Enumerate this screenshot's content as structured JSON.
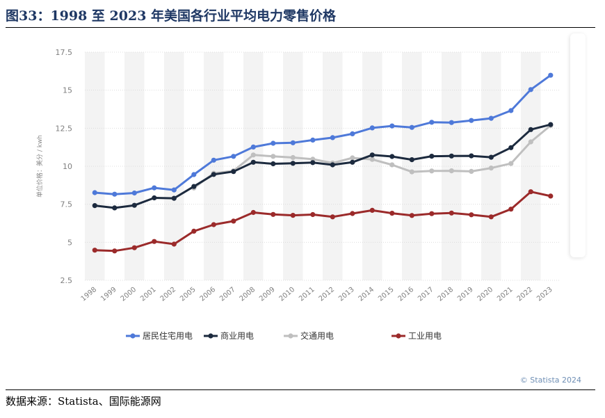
{
  "figure": {
    "title": "图33：1998 至 2023 年美国各行业平均电力零售价格",
    "source": "数据来源：Statista、国际能源网",
    "credit": "© Statista 2024"
  },
  "chart_data": {
    "type": "line",
    "ylabel": "单位价格：美分 / kwh",
    "ylim": [
      2.5,
      17.5
    ],
    "yticks": [
      "17.5",
      "15",
      "12.5",
      "10",
      "7.5",
      "5",
      "2.5"
    ],
    "categories": [
      "1998",
      "1999",
      "2000",
      "2001",
      "2002",
      "2005",
      "2006",
      "2007",
      "2008",
      "2009",
      "2010",
      "2011",
      "2012",
      "2013",
      "2014",
      "2015",
      "2016",
      "2017",
      "2018",
      "2019",
      "2020",
      "2021",
      "2022",
      "2023"
    ],
    "series": [
      {
        "name": "居民住宅用电",
        "color": "#4e79d9",
        "values": [
          8.26,
          8.16,
          8.24,
          8.58,
          8.44,
          9.45,
          10.4,
          10.65,
          11.26,
          11.51,
          11.54,
          11.72,
          11.88,
          12.13,
          12.52,
          12.65,
          12.55,
          12.89,
          12.87,
          13.01,
          13.15,
          13.66,
          15.04,
          15.98
        ]
      },
      {
        "name": "商业用电",
        "color": "#1c2a3e",
        "values": [
          7.41,
          7.26,
          7.43,
          7.92,
          7.89,
          8.67,
          9.46,
          9.65,
          10.26,
          10.16,
          10.19,
          10.24,
          10.09,
          10.26,
          10.74,
          10.64,
          10.43,
          10.66,
          10.67,
          10.68,
          10.59,
          11.22,
          12.41,
          12.74
        ]
      },
      {
        "name": "交通用电",
        "color": "#bfbfbf",
        "values": [
          null,
          null,
          null,
          null,
          null,
          8.57,
          9.54,
          9.7,
          10.74,
          10.65,
          10.57,
          10.46,
          10.21,
          10.55,
          10.45,
          10.09,
          9.63,
          9.69,
          9.7,
          9.66,
          9.88,
          10.18,
          11.6,
          12.68
        ]
      },
      {
        "name": "工业用电",
        "color": "#9b2a2a",
        "values": [
          4.48,
          4.43,
          4.64,
          5.05,
          4.88,
          5.73,
          6.16,
          6.39,
          6.96,
          6.83,
          6.77,
          6.82,
          6.67,
          6.89,
          7.1,
          6.91,
          6.76,
          6.88,
          6.92,
          6.81,
          6.67,
          7.18,
          8.32,
          8.04
        ]
      }
    ]
  }
}
